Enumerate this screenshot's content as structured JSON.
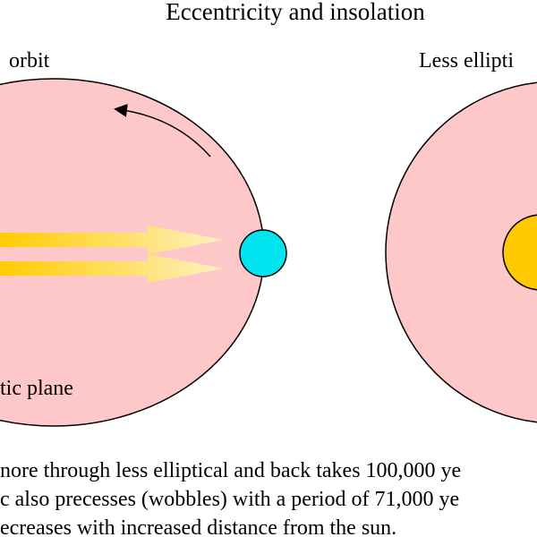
{
  "title": "Eccentricity and insolation",
  "labels": {
    "left_orbit": "orbit",
    "right_orbit": "Less ellipti",
    "plane": "tic plane"
  },
  "caption": [
    "nore through less elliptical and back takes 100,000 ye",
    "c also precesses (wobbles) with a period of 71,000 ye",
    "ecreases with increased distance from the sun."
  ]
}
